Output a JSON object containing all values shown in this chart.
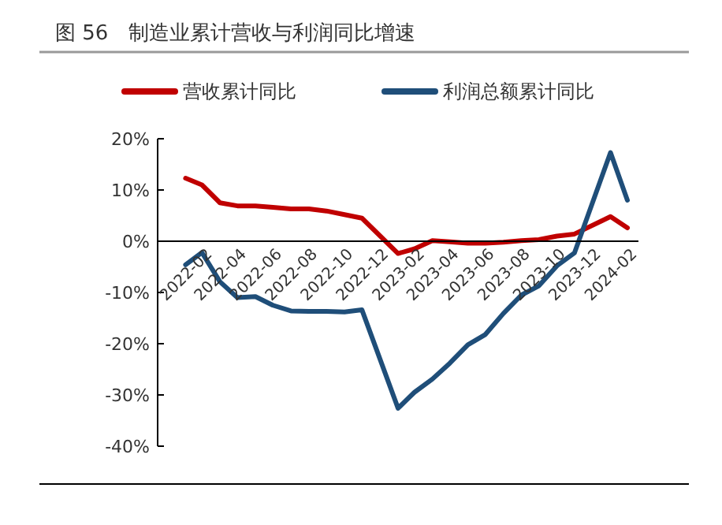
{
  "chart_data": {
    "type": "line",
    "title": "图 56　制造业累计营收与利润同比增速",
    "x": [
      "2022-02",
      "2022-03",
      "2022-04",
      "2022-05",
      "2022-06",
      "2022-07",
      "2022-08",
      "2022-09",
      "2022-10",
      "2022-11",
      "2022-12",
      "2023-02",
      "2023-03",
      "2023-04",
      "2023-05",
      "2023-06",
      "2023-07",
      "2023-08",
      "2023-09",
      "2023-10",
      "2023-11",
      "2023-12",
      "2024-02",
      "2024-03"
    ],
    "series": [
      {
        "name": "营收累计同比",
        "color": "#c00000",
        "values": [
          12.3,
          11.0,
          7.5,
          6.9,
          6.9,
          6.6,
          6.3,
          6.3,
          5.9,
          5.2,
          4.5,
          -2.4,
          -1.5,
          0.1,
          -0.1,
          -0.4,
          -0.4,
          -0.2,
          0.1,
          0.3,
          1.0,
          1.4,
          4.8,
          2.6
        ]
      },
      {
        "name": "利润总额累计同比",
        "color": "#1f4e79",
        "values": [
          -4.6,
          -2.2,
          -7.9,
          -11.0,
          -10.8,
          -12.5,
          -13.6,
          -13.7,
          -13.7,
          -13.8,
          -13.4,
          -32.6,
          -29.5,
          -26.9,
          -23.8,
          -20.2,
          -18.2,
          -14.1,
          -10.5,
          -8.7,
          -4.8,
          -2.3,
          17.3,
          8.0
        ]
      }
    ],
    "xlim": [
      "2021-12-15",
      "2024-03-20"
    ],
    "xticks": [
      "2022-02",
      "2022-04",
      "2022-06",
      "2022-08",
      "2022-10",
      "2022-12",
      "2023-02",
      "2023-04",
      "2023-06",
      "2023-08",
      "2023-10",
      "2023-12",
      "2024-02"
    ],
    "ylim": [
      -40,
      20
    ],
    "yticks": [
      {
        "value": -40,
        "label": "-40%"
      },
      {
        "value": -30,
        "label": "-30%"
      },
      {
        "value": -20,
        "label": "-20%"
      },
      {
        "value": -10,
        "label": "-10%"
      },
      {
        "value": 0,
        "label": "0%"
      },
      {
        "value": 10,
        "label": "10%"
      },
      {
        "value": 20,
        "label": "20%"
      }
    ],
    "grid": false,
    "legend": "top",
    "marker": "none",
    "line_style": "solid"
  }
}
